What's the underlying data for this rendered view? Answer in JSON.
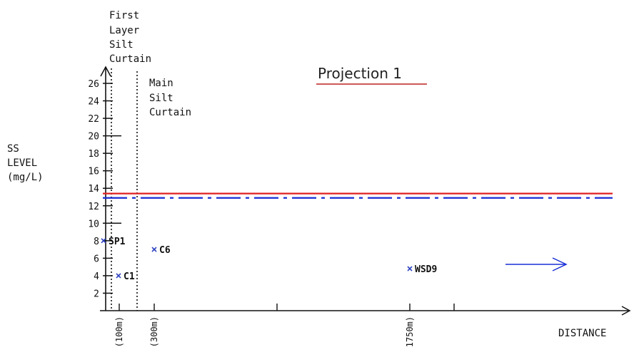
{
  "chart_data": {
    "type": "scatter",
    "title": "Projection 1",
    "ylabel_lines": [
      "SS",
      "LEVEL",
      "(mg/L)"
    ],
    "xlabel": "DISTANCE",
    "ylim": [
      0,
      27
    ],
    "yticks": [
      2,
      4,
      6,
      8,
      10,
      12,
      14,
      16,
      18,
      20,
      22,
      24,
      26
    ],
    "grid": false,
    "points": [
      {
        "name": "SP1",
        "x": 0,
        "y": 8
      },
      {
        "name": "C1",
        "x": 100,
        "y": 4
      },
      {
        "name": "C6",
        "x": 300,
        "y": 7
      },
      {
        "name": "WSD9",
        "x": 1750,
        "y": 4.8
      }
    ],
    "x_markers": [
      {
        "label": "(100m)",
        "x": 100
      },
      {
        "label": "(300m)",
        "x": 300
      },
      {
        "label": "1750m)",
        "x": 1750
      }
    ],
    "curtains": [
      {
        "label_lines": [
          "First",
          "Layer",
          "Silt",
          "Curtain"
        ]
      },
      {
        "label_lines": [
          "Main",
          "Silt",
          "Curtain"
        ]
      }
    ],
    "reference_lines": [
      {
        "y": 13.4,
        "color": "#e02020",
        "style": "solid"
      },
      {
        "y": 12.9,
        "color": "#1a2fd6",
        "style": "dash-dot"
      }
    ],
    "arrow_color": "#1a2fd6"
  }
}
